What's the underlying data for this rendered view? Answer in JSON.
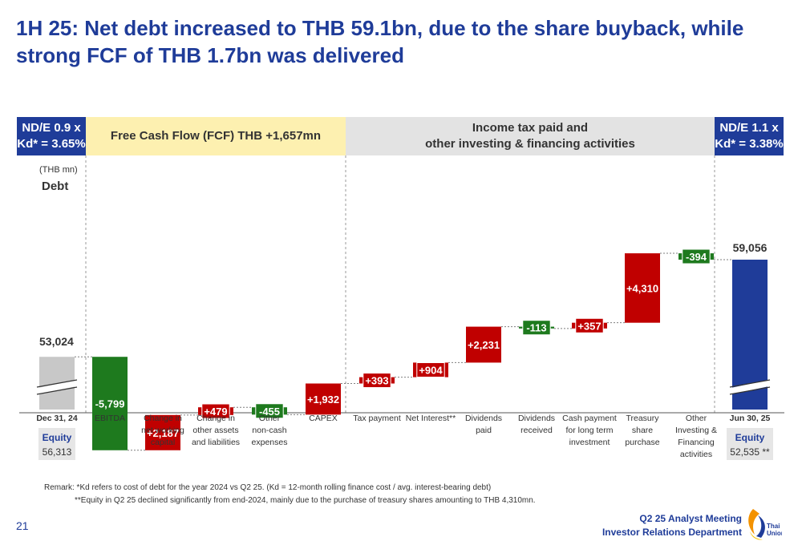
{
  "title": "1H 25: Net debt increased to THB 59.1bn, due to the share buyback, while strong FCF of THB 1.7bn was delivered",
  "bands": {
    "left": {
      "line1": "ND/E 0.9 x",
      "line2": "Kd* = 3.65%"
    },
    "fcf": "Free Cash Flow (FCF) THB +1,657mn",
    "tax": {
      "line1": "Income tax paid and",
      "line2": "other investing & financing activities"
    },
    "right": {
      "line1": "ND/E 1.1 x",
      "line2": "Kd* = 3.38%"
    }
  },
  "colors": {
    "navy": "#1f3c99",
    "increase": "#c00000",
    "decrease": "#1e7a1e",
    "start_bar": "#c8c8c8",
    "fcf_band": "#fdf0b0",
    "tax_band": "#e3e3e3"
  },
  "chart_data": {
    "type": "waterfall",
    "unit_label": "(THB mn)",
    "y_title": "Debt",
    "ylim": [
      49000,
      60000
    ],
    "start": {
      "category": "Dec 31, 24",
      "value": 53024,
      "label": "53,024"
    },
    "steps": [
      {
        "category": [
          "EBITDA"
        ],
        "value": -5799,
        "label": "-5,799"
      },
      {
        "category": [
          "Change in",
          "net working",
          "capital"
        ],
        "value": 2187,
        "label": "+2,187"
      },
      {
        "category": [
          "Change in",
          "other assets",
          "and liabilities"
        ],
        "value": 479,
        "label": "+479"
      },
      {
        "category": [
          "Other",
          "non-cash",
          "expenses"
        ],
        "value": -455,
        "label": "-455"
      },
      {
        "category": [
          "CAPEX"
        ],
        "value": 1932,
        "label": "+1,932"
      },
      {
        "category": [
          "Tax payment"
        ],
        "value": 393,
        "label": "+393"
      },
      {
        "category": [
          "Net Interest**"
        ],
        "value": 904,
        "label": "+904"
      },
      {
        "category": [
          "Dividends",
          "paid"
        ],
        "value": 2231,
        "label": "+2,231"
      },
      {
        "category": [
          "Dividends",
          "received"
        ],
        "value": -113,
        "label": "-113"
      },
      {
        "category": [
          "Cash payment",
          "for long term",
          "investment"
        ],
        "value": 357,
        "label": "+357"
      },
      {
        "category": [
          "Treasury",
          "share",
          "purchase"
        ],
        "value": 4310,
        "label": "+4,310"
      },
      {
        "category": [
          "Other",
          "Investing &",
          "Financing",
          "activities"
        ],
        "value": -394,
        "label": "-394"
      }
    ],
    "end": {
      "category": "Jun 30, 25",
      "value": 59056,
      "label": "59,056"
    },
    "equity": {
      "label": "Equity",
      "start": "56,313",
      "end": "52,535 **"
    }
  },
  "remarks": {
    "line1": "Remark:  *Kd refers to cost of debt for the year 2024 vs Q2 25. (Kd = 12-month rolling finance cost / avg. interest-bearing debt)",
    "line2": "**Equity in Q2 25 declined significantly from end-2024, mainly due to the purchase of treasury shares amounting to THB 4,310mn."
  },
  "page_number": "21",
  "footer": {
    "line1": "Q2 25 Analyst Meeting",
    "line2": "Investor Relations Department"
  },
  "logo_text": {
    "line1": "Thai",
    "line2": "Union"
  }
}
